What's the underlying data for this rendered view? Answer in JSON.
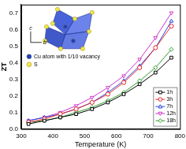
{
  "chart_data": {
    "type": "line",
    "x_label": "Temperature (K)",
    "y_label": "ZT",
    "x": [
      323,
      373,
      423,
      473,
      523,
      573,
      623,
      673,
      723,
      773
    ],
    "series": [
      {
        "name": "1h",
        "color": "#000000",
        "marker": "square",
        "line_style": "solid",
        "values": [
          0.03,
          0.05,
          0.07,
          0.09,
          0.12,
          0.16,
          0.21,
          0.27,
          0.34,
          0.43
        ]
      },
      {
        "name": "3h",
        "color": "#e8262a",
        "marker": "circle",
        "line_style": "solid",
        "values": [
          0.04,
          0.06,
          0.09,
          0.12,
          0.16,
          0.21,
          0.28,
          0.37,
          0.49,
          0.62
        ]
      },
      {
        "name": "7h",
        "color": "#2244dd",
        "marker": "triangle",
        "line_style": "solid",
        "values": [
          0.05,
          0.07,
          0.09,
          0.12,
          0.16,
          0.22,
          0.29,
          0.38,
          0.49,
          0.65
        ]
      },
      {
        "name": "12h",
        "color": "#cc33cc",
        "marker": "triangle-down",
        "line_style": "solid",
        "values": [
          0.05,
          0.07,
          0.1,
          0.14,
          0.19,
          0.25,
          0.32,
          0.42,
          0.55,
          0.7
        ]
      },
      {
        "name": "18h",
        "color": "#2e9b2e",
        "marker": "diamond",
        "line_style": "solid",
        "values": [
          0.04,
          0.05,
          0.07,
          0.1,
          0.13,
          0.17,
          0.22,
          0.29,
          0.37,
          0.48
        ]
      }
    ],
    "xlim": [
      300,
      800
    ],
    "xticks": [
      300,
      400,
      500,
      600,
      700,
      800
    ],
    "ylim": [
      0,
      0.75
    ],
    "yticks": [
      {
        "value": 0,
        "label": "0.0"
      },
      {
        "value": 0.1,
        "label": "0.1"
      },
      {
        "value": 0.2,
        "label": "0.2"
      },
      {
        "value": 0.3,
        "label": "0.3"
      },
      {
        "value": 0.4,
        "label": "0.4"
      },
      {
        "value": 0.5,
        "label": "0.5"
      },
      {
        "value": 0.6,
        "label": "0.6"
      },
      {
        "value": 0.7,
        "label": "0.7"
      }
    ],
    "legend": "lower right",
    "inset": {
      "axes": [
        "c",
        "b"
      ],
      "labels": [
        {
          "text": "Cu atom with 1/10 vacancy",
          "color": "#1a3fcf"
        },
        {
          "text": "S",
          "color": "#f2e64a"
        }
      ]
    }
  }
}
